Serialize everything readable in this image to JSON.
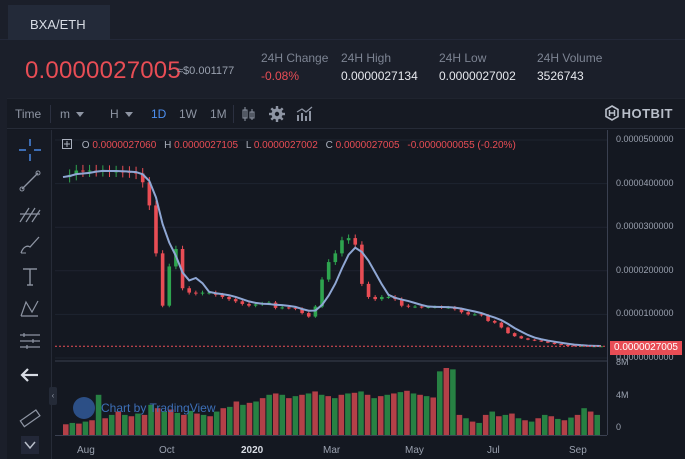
{
  "tab": {
    "label": "BXA/ETH"
  },
  "price": {
    "last": "0.0000027005",
    "usd": "≈$0.001177"
  },
  "stats": [
    {
      "label": "24H Change",
      "value": "-0.08%",
      "negative": true
    },
    {
      "label": "24H High",
      "value": "0.0000027134",
      "negative": false
    },
    {
      "label": "24H Low",
      "value": "0.0000027002",
      "negative": false
    },
    {
      "label": "24H Volume",
      "value": "3526743",
      "negative": false
    }
  ],
  "toolbar": {
    "time_label": "Time",
    "minute_label": "m",
    "hour_label": "H",
    "periods": [
      "1D",
      "1W",
      "1M"
    ],
    "active_period": "1D",
    "brand": "HOTBIT"
  },
  "ohlc": {
    "o_key": "O",
    "o": "0.0000027060",
    "h_key": "H",
    "h": "0.0000027105",
    "l_key": "L",
    "l": "0.0000027002",
    "c_key": "C",
    "c": "0.0000027005",
    "change": "-0.0000000055 (-0.20%)"
  },
  "last_price_tag": "0.0000027005",
  "watermark": "Chart by TradingView",
  "colors": {
    "up": "#2ea44f",
    "down": "#e84d55",
    "ma": "#8fa7d4",
    "accent": "#4d8ff0"
  },
  "chart_data": {
    "type": "line",
    "price_axis": {
      "ticks": [
        "0.0000500000",
        "0.0000400000",
        "0.0000300000",
        "0.0000200000",
        "0.0000100000",
        "0.0000000000"
      ],
      "range": [
        0,
        5e-05
      ]
    },
    "volume_axis": {
      "ticks": [
        "8M",
        "4M",
        "0"
      ],
      "range": [
        0,
        8000000
      ]
    },
    "x_ticks": [
      "Aug",
      "Oct",
      "2020",
      "Mar",
      "May",
      "Jul",
      "Sep"
    ],
    "x_ticks_bold": [
      "2020"
    ],
    "series": [
      {
        "x": [
          0,
          5,
          10,
          15,
          20,
          25,
          30,
          35,
          40,
          45,
          50,
          55,
          60,
          65,
          70,
          75,
          80,
          85,
          90,
          95,
          100,
          105,
          110,
          115,
          120,
          125,
          130,
          135,
          140,
          145,
          150,
          155,
          160,
          165,
          170,
          175,
          180,
          185,
          190,
          195,
          200,
          205,
          210,
          215,
          220,
          225,
          230,
          235,
          240,
          245,
          250,
          255,
          260,
          265,
          270,
          275,
          280,
          285,
          290,
          295,
          300,
          305,
          310,
          315,
          320,
          325,
          330,
          335,
          340,
          345,
          350,
          355,
          360,
          365,
          370,
          375,
          380,
          385,
          390,
          395,
          400,
          405
        ],
        "y": [
          4.15e-05,
          4.2e-05,
          4.3e-05,
          4.28e-05,
          4.3e-05,
          4.29e-05,
          4.29e-05,
          4.28e-05,
          4.28e-05,
          4.27e-05,
          4.26e-05,
          4.23e-05,
          4.03e-05,
          3.5e-05,
          2.4e-05,
          1.2e-05,
          2.1e-05,
          2.5e-05,
          1.6e-05,
          1.5e-05,
          1.48e-05,
          1.5e-05,
          1.5e-05,
          1.45e-05,
          1.4e-05,
          1.35e-05,
          1.3e-05,
          1.24e-05,
          1.2e-05,
          1.23e-05,
          1.25e-05,
          1.27e-05,
          1.15e-05,
          1.16e-05,
          1.15e-05,
          1.13e-05,
          1.03e-05,
          9.5e-06,
          1.18e-05,
          1.8e-05,
          2.2e-05,
          2.4e-05,
          2.7e-05,
          2.75e-05,
          2.6e-05,
          1.7e-05,
          1.4e-05,
          1.35e-05,
          1.4e-05,
          1.4e-05,
          1.35e-05,
          1.2e-05,
          1.18e-05,
          1.18e-05,
          1.17e-05,
          1.17e-05,
          1.17e-05,
          1.16e-05,
          1.16e-05,
          1.12e-05,
          1.05e-05,
          1e-05,
          1e-05,
          9.8e-06,
          8.5e-06,
          8.1e-06,
          7e-06,
          5.7e-06,
          5e-06,
          4.5e-06,
          4.2e-06,
          4e-06,
          3.8e-06,
          3.5e-06,
          3.2e-06,
          3e-06,
          2.9e-06,
          2.8e-06,
          2.8e-06,
          2.7e-06,
          2.7e-06,
          2.7005e-06
        ]
      }
    ],
    "volume_profile": [
      0.16,
      0.18,
      0.17,
      0.2,
      0.22,
      0.6,
      0.25,
      0.3,
      0.35,
      0.3,
      0.28,
      0.32,
      0.3,
      0.45,
      0.4,
      0.35,
      0.38,
      0.33,
      0.3,
      0.36,
      0.32,
      0.3,
      0.28,
      0.35,
      0.4,
      0.42,
      0.5,
      0.45,
      0.48,
      0.5,
      0.55,
      0.6,
      0.62,
      0.6,
      0.55,
      0.58,
      0.6,
      0.62,
      0.65,
      0.6,
      0.58,
      0.55,
      0.6,
      0.62,
      0.63,
      0.65,
      0.6,
      0.55,
      0.58,
      0.6,
      0.62,
      0.64,
      0.66,
      0.62,
      0.6,
      0.58,
      0.56,
      0.95,
      1.0,
      0.98,
      0.3,
      0.25,
      0.2,
      0.18,
      0.3,
      0.35,
      0.28,
      0.3,
      0.32,
      0.25,
      0.22,
      0.2,
      0.25,
      0.3,
      0.28,
      0.24,
      0.22,
      0.26,
      0.3,
      0.4,
      0.35,
      0.3
    ]
  }
}
